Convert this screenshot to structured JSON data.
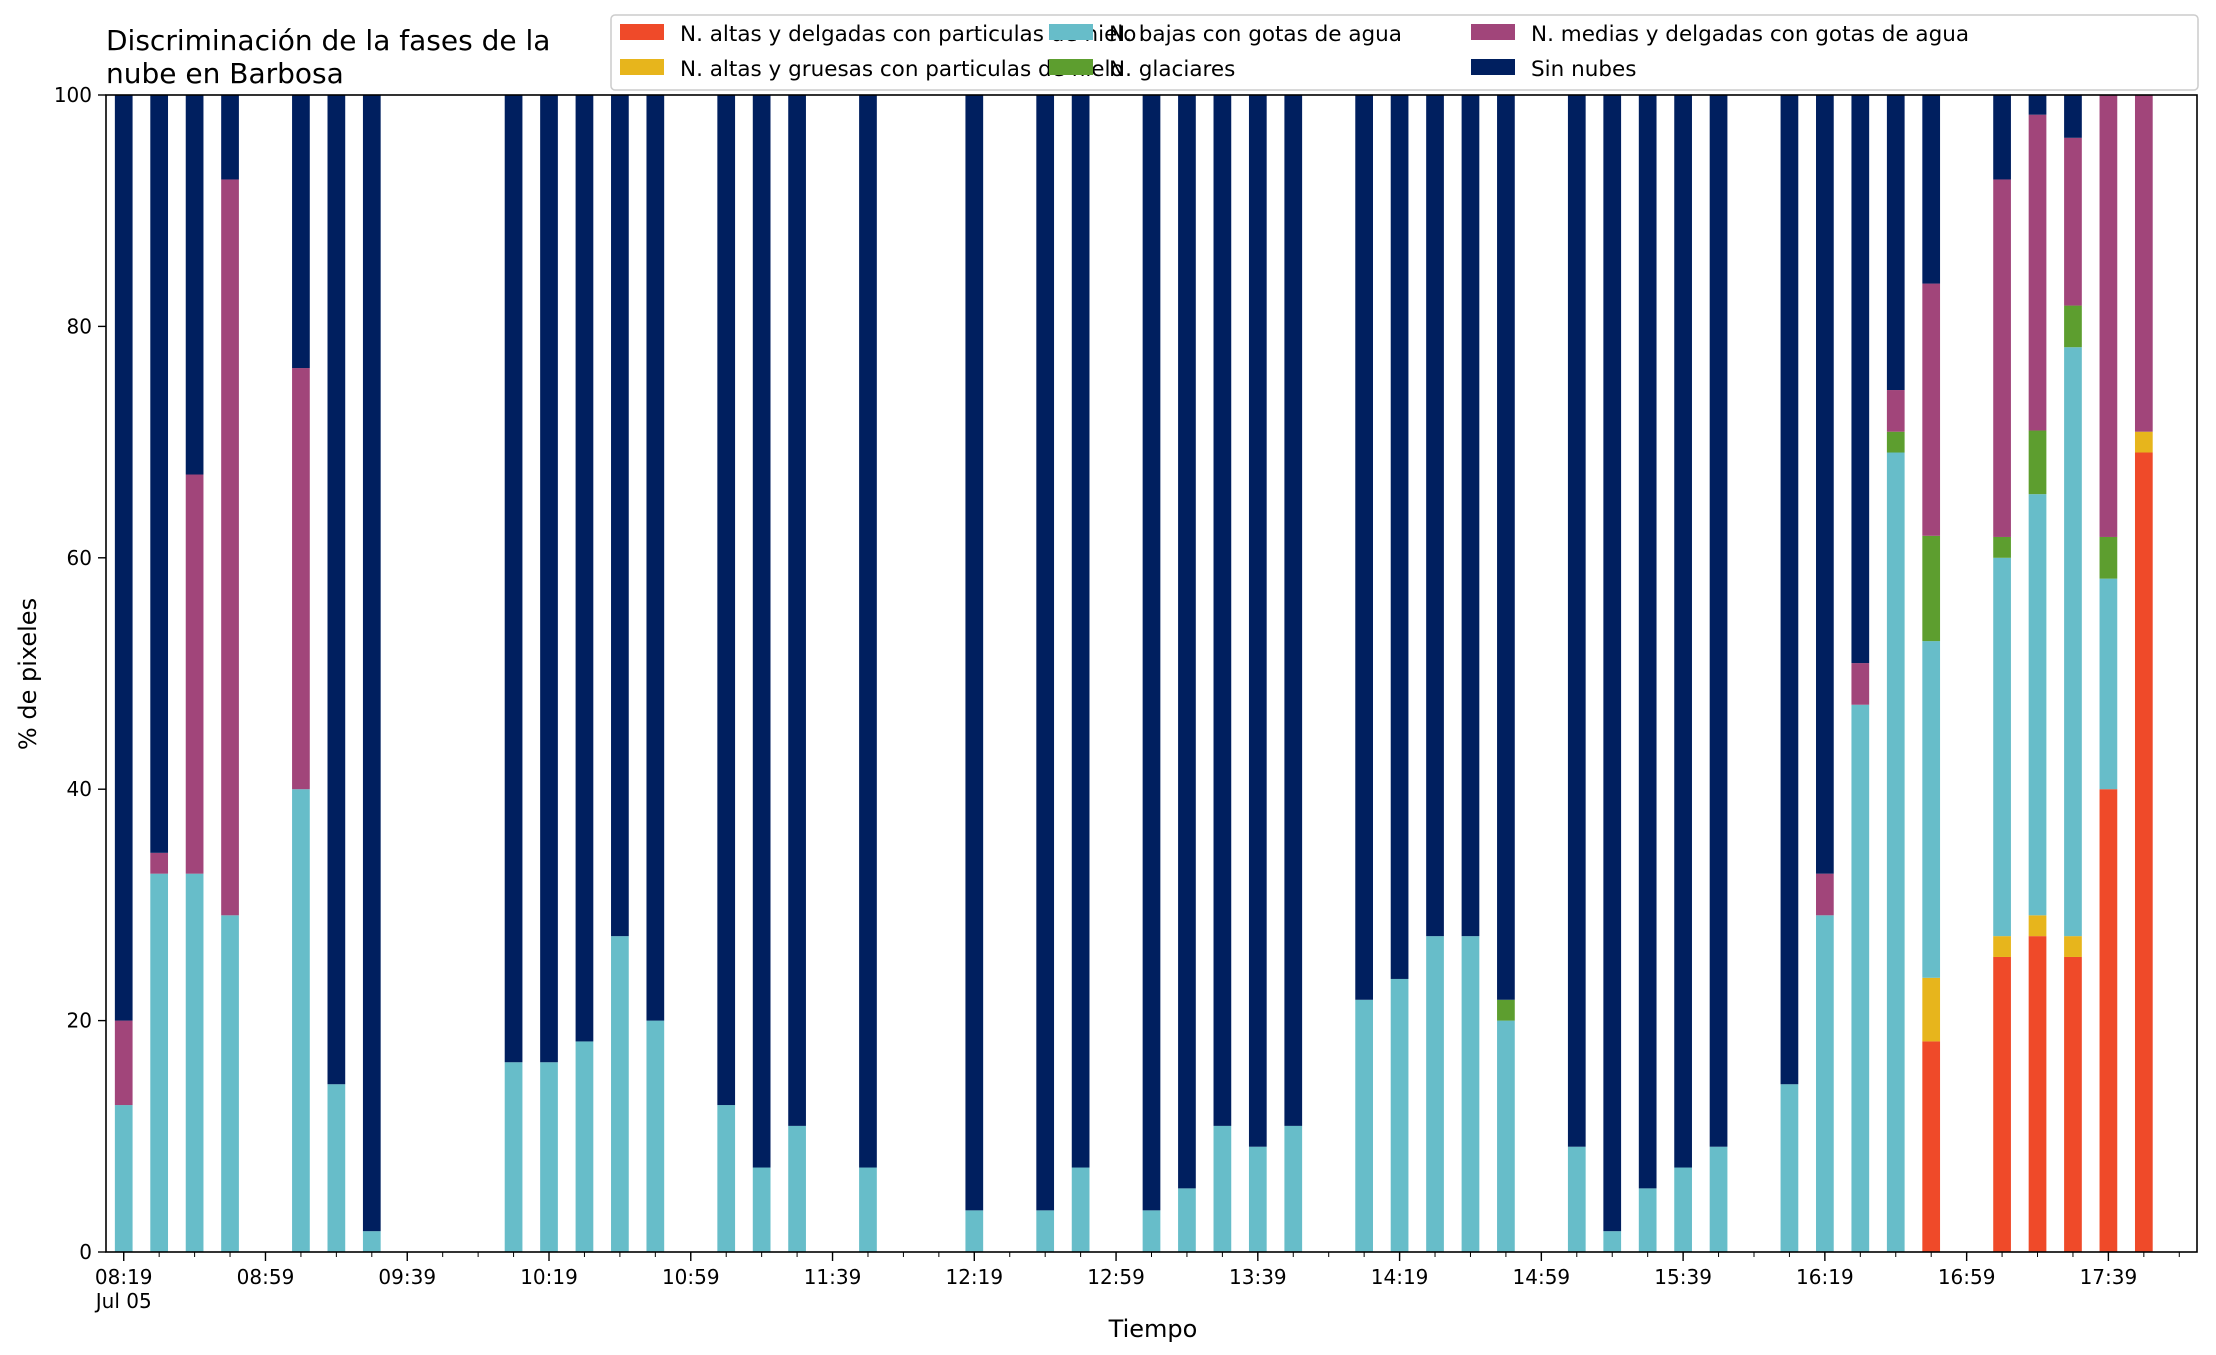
{
  "chart_data": {
    "type": "bar",
    "stacked": true,
    "title_lines": [
      "Discriminación de la fases de la",
      "nube en Barbosa"
    ],
    "xlabel": "Tiempo",
    "ylabel": "% de pixeles",
    "ylim": [
      0,
      100
    ],
    "yticks": [
      0,
      20,
      40,
      60,
      80,
      100
    ],
    "grid": false,
    "legend_position": "top-right",
    "x_range_slots": [
      -0.5,
      58.5
    ],
    "x_ticks": [
      {
        "slot": 0,
        "label": "08:19",
        "sublabel": "Jul 05"
      },
      {
        "slot": 4,
        "label": "08:59"
      },
      {
        "slot": 8,
        "label": "09:39"
      },
      {
        "slot": 12,
        "label": "10:19"
      },
      {
        "slot": 16,
        "label": "10:59"
      },
      {
        "slot": 20,
        "label": "11:39"
      },
      {
        "slot": 24,
        "label": "12:19"
      },
      {
        "slot": 28,
        "label": "12:59"
      },
      {
        "slot": 32,
        "label": "13:39"
      },
      {
        "slot": 36,
        "label": "14:19"
      },
      {
        "slot": 40,
        "label": "14:59"
      },
      {
        "slot": 44,
        "label": "15:39"
      },
      {
        "slot": 48,
        "label": "16:19"
      },
      {
        "slot": 52,
        "label": "16:59"
      },
      {
        "slot": 56,
        "label": "17:39"
      }
    ],
    "series": [
      {
        "key": "altas_delgadas",
        "name": "N. altas y delgadas con particulas de hielo",
        "color": "#ef4a29"
      },
      {
        "key": "altas_gruesas",
        "name": "N. altas y gruesas con particulas de hielo",
        "color": "#e7b51c"
      },
      {
        "key": "bajas",
        "name": "N. bajas con gotas de agua",
        "color": "#67bdc9"
      },
      {
        "key": "glaciares",
        "name": "N. glaciares",
        "color": "#5d9e2f"
      },
      {
        "key": "medias",
        "name": "N. medias y delgadas con gotas de agua",
        "color": "#a1457a"
      },
      {
        "key": "sin_nubes",
        "name": "Sin nubes",
        "color": "#001f5f"
      }
    ],
    "bars": [
      {
        "slot": 0,
        "time": "08:19",
        "altas_delgadas": 0,
        "altas_gruesas": 0,
        "bajas": 12.7,
        "glaciares": 0,
        "medias": 7.3,
        "sin_nubes": 80.0
      },
      {
        "slot": 1,
        "time": "08:29",
        "altas_delgadas": 0,
        "altas_gruesas": 0,
        "bajas": 32.7,
        "glaciares": 0,
        "medias": 1.8,
        "sin_nubes": 65.5
      },
      {
        "slot": 2,
        "time": "08:39",
        "altas_delgadas": 0,
        "altas_gruesas": 0,
        "bajas": 32.7,
        "glaciares": 0,
        "medias": 34.5,
        "sin_nubes": 32.8
      },
      {
        "slot": 3,
        "time": "08:49",
        "altas_delgadas": 0,
        "altas_gruesas": 0,
        "bajas": 29.1,
        "glaciares": 0,
        "medias": 63.6,
        "sin_nubes": 7.3
      },
      {
        "slot": 5,
        "time": "09:09",
        "altas_delgadas": 0,
        "altas_gruesas": 0,
        "bajas": 40.0,
        "glaciares": 0,
        "medias": 36.4,
        "sin_nubes": 23.6
      },
      {
        "slot": 6,
        "time": "09:19",
        "altas_delgadas": 0,
        "altas_gruesas": 0,
        "bajas": 14.5,
        "glaciares": 0,
        "medias": 0,
        "sin_nubes": 85.5
      },
      {
        "slot": 7,
        "time": "09:29",
        "altas_delgadas": 0,
        "altas_gruesas": 0,
        "bajas": 1.8,
        "glaciares": 0,
        "medias": 0,
        "sin_nubes": 98.2
      },
      {
        "slot": 11,
        "time": "10:09",
        "altas_delgadas": 0,
        "altas_gruesas": 0,
        "bajas": 16.4,
        "glaciares": 0,
        "medias": 0,
        "sin_nubes": 83.6
      },
      {
        "slot": 12,
        "time": "10:19",
        "altas_delgadas": 0,
        "altas_gruesas": 0,
        "bajas": 16.4,
        "glaciares": 0,
        "medias": 0,
        "sin_nubes": 83.6
      },
      {
        "slot": 13,
        "time": "10:29",
        "altas_delgadas": 0,
        "altas_gruesas": 0,
        "bajas": 18.2,
        "glaciares": 0,
        "medias": 0,
        "sin_nubes": 81.8
      },
      {
        "slot": 14,
        "time": "10:39",
        "altas_delgadas": 0,
        "altas_gruesas": 0,
        "bajas": 27.3,
        "glaciares": 0,
        "medias": 0,
        "sin_nubes": 72.7
      },
      {
        "slot": 15,
        "time": "10:49",
        "altas_delgadas": 0,
        "altas_gruesas": 0,
        "bajas": 20.0,
        "glaciares": 0,
        "medias": 0,
        "sin_nubes": 80.0
      },
      {
        "slot": 17,
        "time": "11:09",
        "altas_delgadas": 0,
        "altas_gruesas": 0,
        "bajas": 12.7,
        "glaciares": 0,
        "medias": 0,
        "sin_nubes": 87.3
      },
      {
        "slot": 18,
        "time": "11:19",
        "altas_delgadas": 0,
        "altas_gruesas": 0,
        "bajas": 7.3,
        "glaciares": 0,
        "medias": 0,
        "sin_nubes": 92.7
      },
      {
        "slot": 19,
        "time": "11:29",
        "altas_delgadas": 0,
        "altas_gruesas": 0,
        "bajas": 10.9,
        "glaciares": 0,
        "medias": 0,
        "sin_nubes": 89.1
      },
      {
        "slot": 21,
        "time": "11:49",
        "altas_delgadas": 0,
        "altas_gruesas": 0,
        "bajas": 7.3,
        "glaciares": 0,
        "medias": 0,
        "sin_nubes": 92.7
      },
      {
        "slot": 24,
        "time": "12:19",
        "altas_delgadas": 0,
        "altas_gruesas": 0,
        "bajas": 3.6,
        "glaciares": 0,
        "medias": 0,
        "sin_nubes": 96.4
      },
      {
        "slot": 26,
        "time": "12:39",
        "altas_delgadas": 0,
        "altas_gruesas": 0,
        "bajas": 3.6,
        "glaciares": 0,
        "medias": 0,
        "sin_nubes": 96.4
      },
      {
        "slot": 27,
        "time": "12:49",
        "altas_delgadas": 0,
        "altas_gruesas": 0,
        "bajas": 7.3,
        "glaciares": 0,
        "medias": 0,
        "sin_nubes": 92.7
      },
      {
        "slot": 29,
        "time": "13:09",
        "altas_delgadas": 0,
        "altas_gruesas": 0,
        "bajas": 3.6,
        "glaciares": 0,
        "medias": 0,
        "sin_nubes": 96.4
      },
      {
        "slot": 30,
        "time": "13:19",
        "altas_delgadas": 0,
        "altas_gruesas": 0,
        "bajas": 5.5,
        "glaciares": 0,
        "medias": 0,
        "sin_nubes": 94.5
      },
      {
        "slot": 31,
        "time": "13:29",
        "altas_delgadas": 0,
        "altas_gruesas": 0,
        "bajas": 10.9,
        "glaciares": 0,
        "medias": 0,
        "sin_nubes": 89.1
      },
      {
        "slot": 32,
        "time": "13:39",
        "altas_delgadas": 0,
        "altas_gruesas": 0,
        "bajas": 9.1,
        "glaciares": 0,
        "medias": 0,
        "sin_nubes": 90.9
      },
      {
        "slot": 33,
        "time": "13:49",
        "altas_delgadas": 0,
        "altas_gruesas": 0,
        "bajas": 10.9,
        "glaciares": 0,
        "medias": 0,
        "sin_nubes": 89.1
      },
      {
        "slot": 35,
        "time": "14:09",
        "altas_delgadas": 0,
        "altas_gruesas": 0,
        "bajas": 21.8,
        "glaciares": 0,
        "medias": 0,
        "sin_nubes": 78.2
      },
      {
        "slot": 36,
        "time": "14:19",
        "altas_delgadas": 0,
        "altas_gruesas": 0,
        "bajas": 23.6,
        "glaciares": 0,
        "medias": 0,
        "sin_nubes": 76.4
      },
      {
        "slot": 37,
        "time": "14:29",
        "altas_delgadas": 0,
        "altas_gruesas": 0,
        "bajas": 27.3,
        "glaciares": 0,
        "medias": 0,
        "sin_nubes": 72.7
      },
      {
        "slot": 38,
        "time": "14:39",
        "altas_delgadas": 0,
        "altas_gruesas": 0,
        "bajas": 27.3,
        "glaciares": 0,
        "medias": 0,
        "sin_nubes": 72.7
      },
      {
        "slot": 39,
        "time": "14:49",
        "altas_delgadas": 0,
        "altas_gruesas": 0,
        "bajas": 20.0,
        "glaciares": 1.8,
        "medias": 0,
        "sin_nubes": 78.2
      },
      {
        "slot": 41,
        "time": "15:09",
        "altas_delgadas": 0,
        "altas_gruesas": 0,
        "bajas": 9.1,
        "glaciares": 0,
        "medias": 0,
        "sin_nubes": 90.9
      },
      {
        "slot": 42,
        "time": "15:19",
        "altas_delgadas": 0,
        "altas_gruesas": 0,
        "bajas": 1.8,
        "glaciares": 0,
        "medias": 0,
        "sin_nubes": 98.2
      },
      {
        "slot": 43,
        "time": "15:29",
        "altas_delgadas": 0,
        "altas_gruesas": 0,
        "bajas": 5.5,
        "glaciares": 0,
        "medias": 0,
        "sin_nubes": 94.5
      },
      {
        "slot": 44,
        "time": "15:39",
        "altas_delgadas": 0,
        "altas_gruesas": 0,
        "bajas": 7.3,
        "glaciares": 0,
        "medias": 0,
        "sin_nubes": 92.7
      },
      {
        "slot": 45,
        "time": "15:49",
        "altas_delgadas": 0,
        "altas_gruesas": 0,
        "bajas": 9.1,
        "glaciares": 0,
        "medias": 0,
        "sin_nubes": 90.9
      },
      {
        "slot": 47,
        "time": "16:09",
        "altas_delgadas": 0,
        "altas_gruesas": 0,
        "bajas": 14.5,
        "glaciares": 0,
        "medias": 0,
        "sin_nubes": 85.5
      },
      {
        "slot": 48,
        "time": "16:19",
        "altas_delgadas": 0,
        "altas_gruesas": 0,
        "bajas": 29.1,
        "glaciares": 0,
        "medias": 3.6,
        "sin_nubes": 67.3
      },
      {
        "slot": 49,
        "time": "16:29",
        "altas_delgadas": 0,
        "altas_gruesas": 0,
        "bajas": 47.3,
        "glaciares": 0,
        "medias": 3.6,
        "sin_nubes": 49.1
      },
      {
        "slot": 50,
        "time": "16:39",
        "altas_delgadas": 0,
        "altas_gruesas": 0,
        "bajas": 69.1,
        "glaciares": 1.8,
        "medias": 3.6,
        "sin_nubes": 25.5
      },
      {
        "slot": 51,
        "time": "16:49",
        "altas_delgadas": 18.2,
        "altas_gruesas": 5.5,
        "bajas": 29.1,
        "glaciares": 9.1,
        "medias": 21.8,
        "sin_nubes": 16.3
      },
      {
        "slot": 53,
        "time": "17:09",
        "altas_delgadas": 25.5,
        "altas_gruesas": 1.8,
        "bajas": 32.7,
        "glaciares": 1.8,
        "medias": 30.9,
        "sin_nubes": 7.3
      },
      {
        "slot": 54,
        "time": "17:19",
        "altas_delgadas": 27.3,
        "altas_gruesas": 1.8,
        "bajas": 36.4,
        "glaciares": 5.5,
        "medias": 27.3,
        "sin_nubes": 1.7
      },
      {
        "slot": 55,
        "time": "17:29",
        "altas_delgadas": 25.5,
        "altas_gruesas": 1.8,
        "bajas": 50.9,
        "glaciares": 3.6,
        "medias": 14.5,
        "sin_nubes": 3.7
      },
      {
        "slot": 56,
        "time": "17:39",
        "altas_delgadas": 40.0,
        "altas_gruesas": 0,
        "bajas": 18.2,
        "glaciares": 3.6,
        "medias": 38.2,
        "sin_nubes": 0
      },
      {
        "slot": 57,
        "time": "17:49",
        "altas_delgadas": 69.1,
        "altas_gruesas": 1.8,
        "bajas": 0,
        "glaciares": 0,
        "medias": 29.1,
        "sin_nubes": 0
      }
    ]
  }
}
